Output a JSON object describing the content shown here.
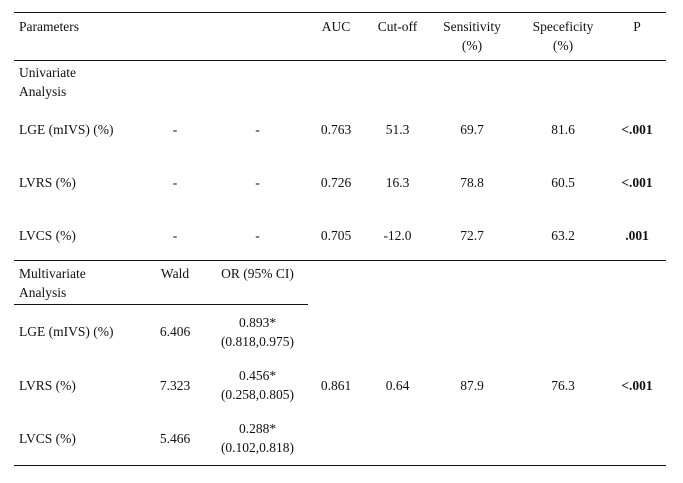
{
  "headers": {
    "parameters": "Parameters",
    "auc": "AUC",
    "cutoff": "Cut-off",
    "sensitivity_1": "Sensitivity",
    "sensitivity_2": "(%)",
    "specificity_1": "Speceficity",
    "specificity_2": "(%)",
    "p": "P"
  },
  "univariate": {
    "title_1": "Univariate",
    "title_2": "Analysis",
    "rows": [
      {
        "param": "LGE (mIVS) (%)",
        "wald": "-",
        "or": "-",
        "auc": "0.763",
        "cutoff": "51.3",
        "sens": "69.7",
        "spec": "81.6",
        "p": "<.001"
      },
      {
        "param": "LVRS (%)",
        "wald": "-",
        "or": "-",
        "auc": "0.726",
        "cutoff": "16.3",
        "sens": "78.8",
        "spec": "60.5",
        "p": "<.001"
      },
      {
        "param": "LVCS (%)",
        "wald": "-",
        "or": "-",
        "auc": "0.705",
        "cutoff": "-12.0",
        "sens": "72.7",
        "spec": "63.2",
        "p": ".001"
      }
    ]
  },
  "multivariate": {
    "title_1": "Multivariate",
    "title_2": "Analysis",
    "wald_header": "Wald",
    "or_header": "OR (95% CI)",
    "rows": [
      {
        "param": "LGE (mIVS) (%)",
        "wald": "6.406",
        "or_1": "0.893*",
        "or_2": "(0.818,0.975)"
      },
      {
        "param": "LVRS (%)",
        "wald": "7.323",
        "or_1": "0.456*",
        "or_2": "(0.258,0.805)"
      },
      {
        "param": "LVCS (%)",
        "wald": "5.466",
        "or_1": "0.288*",
        "or_2": "(0.102,0.818)"
      }
    ],
    "combined": {
      "auc": "0.861",
      "cutoff": "0.64",
      "sens": "87.9",
      "spec": "76.3",
      "p": "<.001"
    }
  }
}
